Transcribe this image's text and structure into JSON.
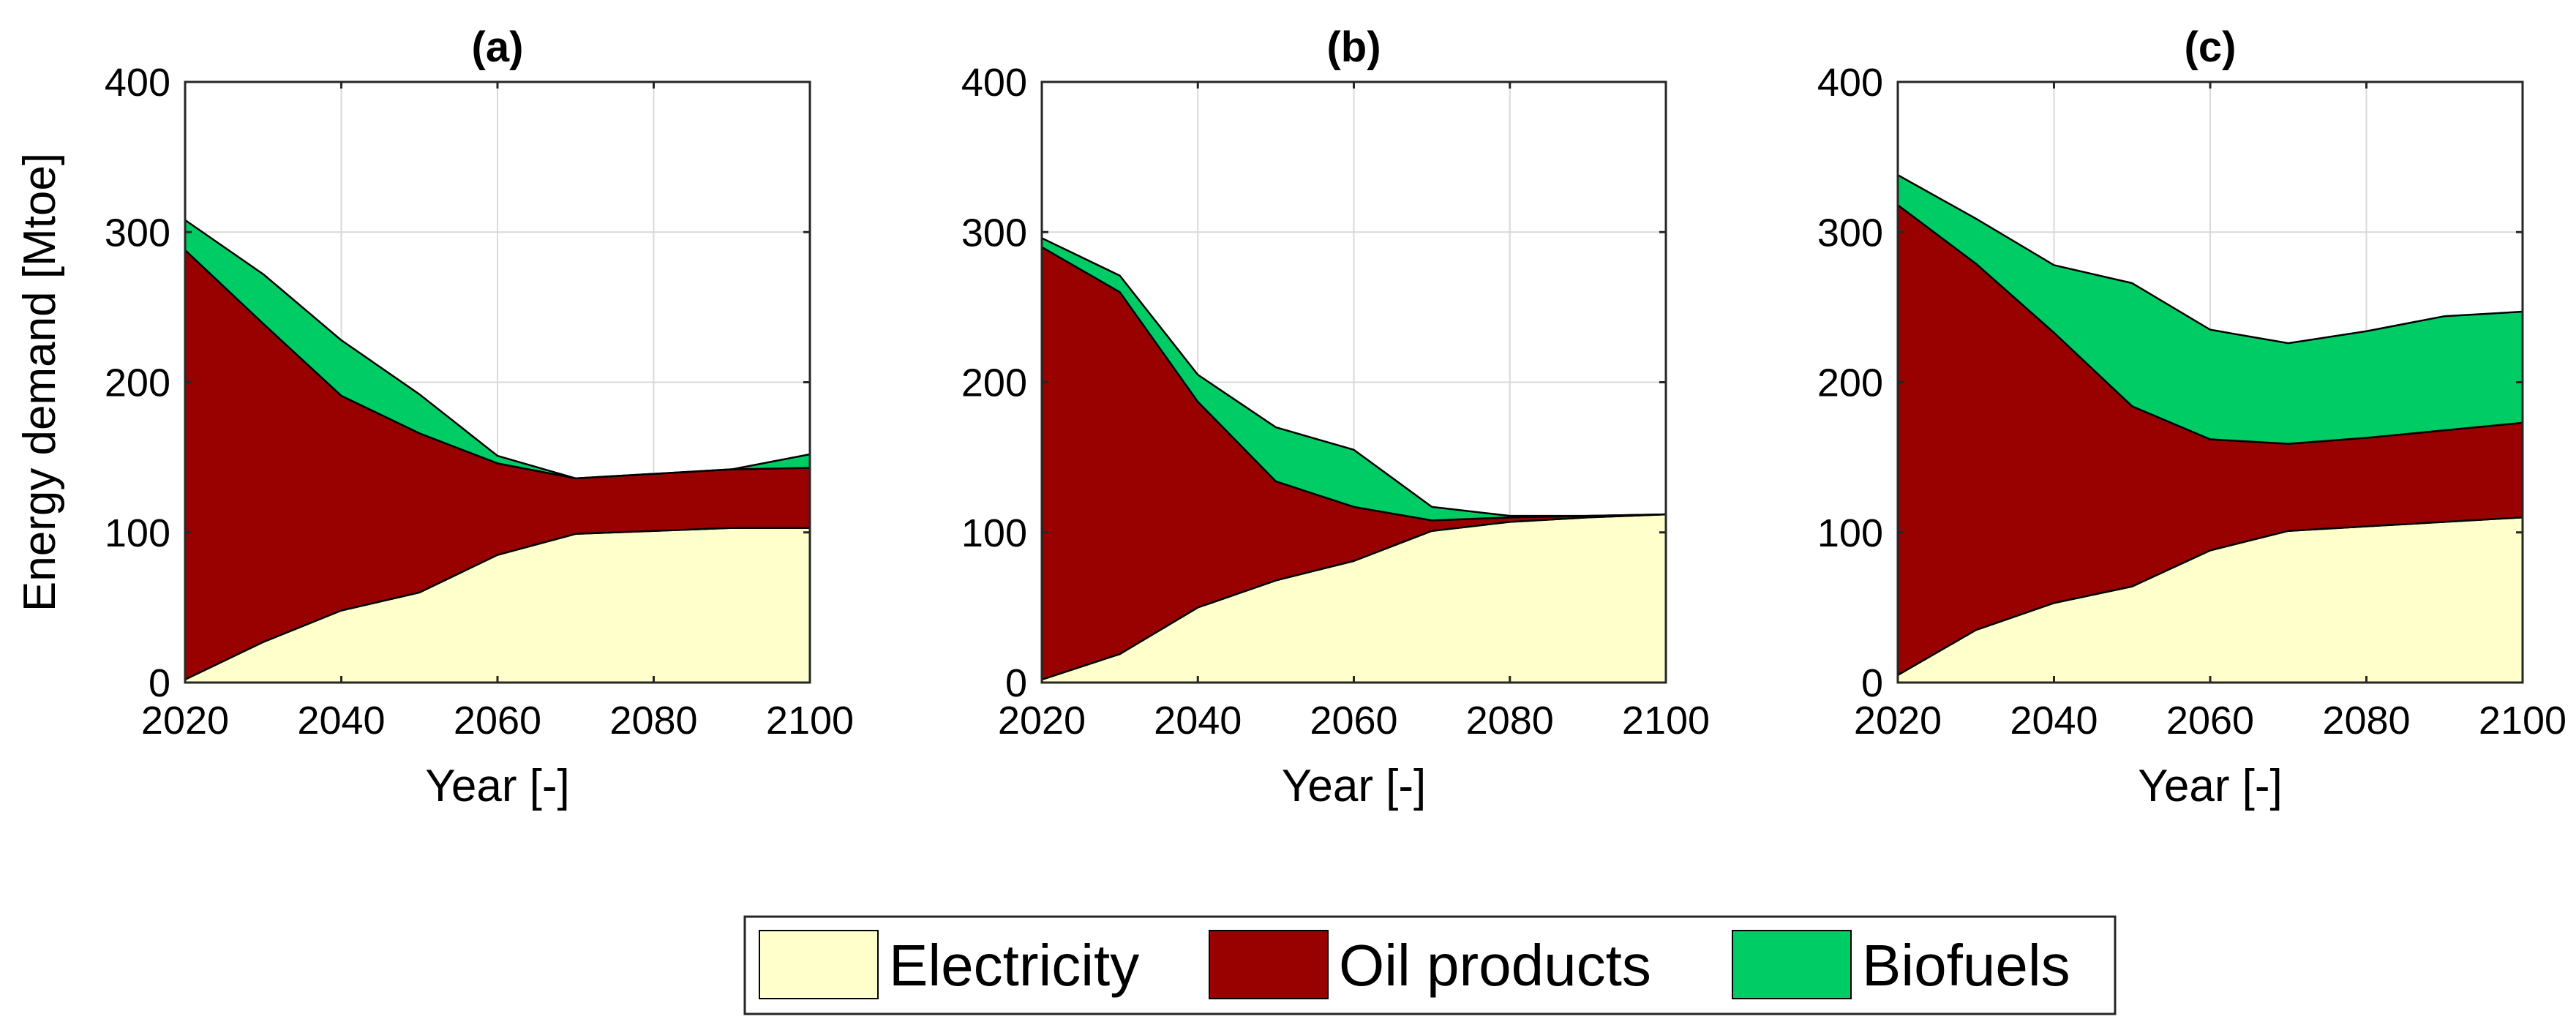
{
  "chart_data": [
    {
      "type": "area",
      "title": "(a)",
      "xlabel": "Year [-]",
      "ylabel": "Energy demand [Mtoe]",
      "xlim": [
        2020,
        2100
      ],
      "ylim": [
        0,
        400
      ],
      "xticks": [
        2020,
        2040,
        2060,
        2080,
        2100
      ],
      "yticks": [
        0,
        100,
        200,
        300,
        400
      ],
      "grid": true,
      "x": [
        2020,
        2030,
        2040,
        2050,
        2060,
        2070,
        2080,
        2090,
        2100
      ],
      "series": [
        {
          "name": "Electricity",
          "values": [
            2,
            27,
            48,
            60,
            85,
            99,
            101,
            103,
            103
          ]
        },
        {
          "name": "Oil products",
          "values": [
            286,
            212,
            143,
            106,
            61,
            37,
            38,
            39,
            40
          ]
        },
        {
          "name": "Biofuels",
          "values": [
            20,
            33,
            37,
            26,
            5,
            0,
            0,
            0,
            9
          ]
        }
      ]
    },
    {
      "type": "area",
      "title": "(b)",
      "xlabel": "Year [-]",
      "ylabel": "",
      "xlim": [
        2020,
        2100
      ],
      "ylim": [
        0,
        400
      ],
      "xticks": [
        2020,
        2040,
        2060,
        2080,
        2100
      ],
      "yticks": [
        0,
        100,
        200,
        300,
        400
      ],
      "grid": true,
      "x": [
        2020,
        2030,
        2040,
        2050,
        2060,
        2070,
        2080,
        2090,
        2100
      ],
      "series": [
        {
          "name": "Electricity",
          "values": [
            2,
            19,
            50,
            68,
            81,
            101,
            107,
            110,
            112
          ]
        },
        {
          "name": "Oil products",
          "values": [
            288,
            241,
            137,
            66,
            36,
            7,
            3,
            1,
            0
          ]
        },
        {
          "name": "Biofuels",
          "values": [
            6,
            11,
            18,
            36,
            38,
            9,
            1,
            0,
            0
          ]
        }
      ]
    },
    {
      "type": "area",
      "title": "(c)",
      "xlabel": "Year [-]",
      "ylabel": "",
      "xlim": [
        2020,
        2100
      ],
      "ylim": [
        0,
        400
      ],
      "xticks": [
        2020,
        2040,
        2060,
        2080,
        2100
      ],
      "yticks": [
        0,
        100,
        200,
        300,
        400
      ],
      "grid": true,
      "x": [
        2020,
        2030,
        2040,
        2050,
        2060,
        2070,
        2080,
        2090,
        2100
      ],
      "series": [
        {
          "name": "Electricity",
          "values": [
            5,
            35,
            53,
            64,
            88,
            101,
            104,
            107,
            110
          ]
        },
        {
          "name": "Oil products",
          "values": [
            313,
            244,
            180,
            120,
            74,
            58,
            59,
            61,
            63
          ]
        },
        {
          "name": "Biofuels",
          "values": [
            20,
            30,
            45,
            82,
            73,
            67,
            71,
            76,
            74
          ]
        }
      ]
    }
  ],
  "legend": {
    "placement": "bottom-center",
    "items": [
      "Electricity",
      "Oil products",
      "Biofuels"
    ]
  },
  "colors": {
    "Electricity": "#ffffcc",
    "Oil products": "#990000",
    "Biofuels": "#00cc66",
    "axis": "#262626",
    "grid": "#d9d9d9"
  }
}
